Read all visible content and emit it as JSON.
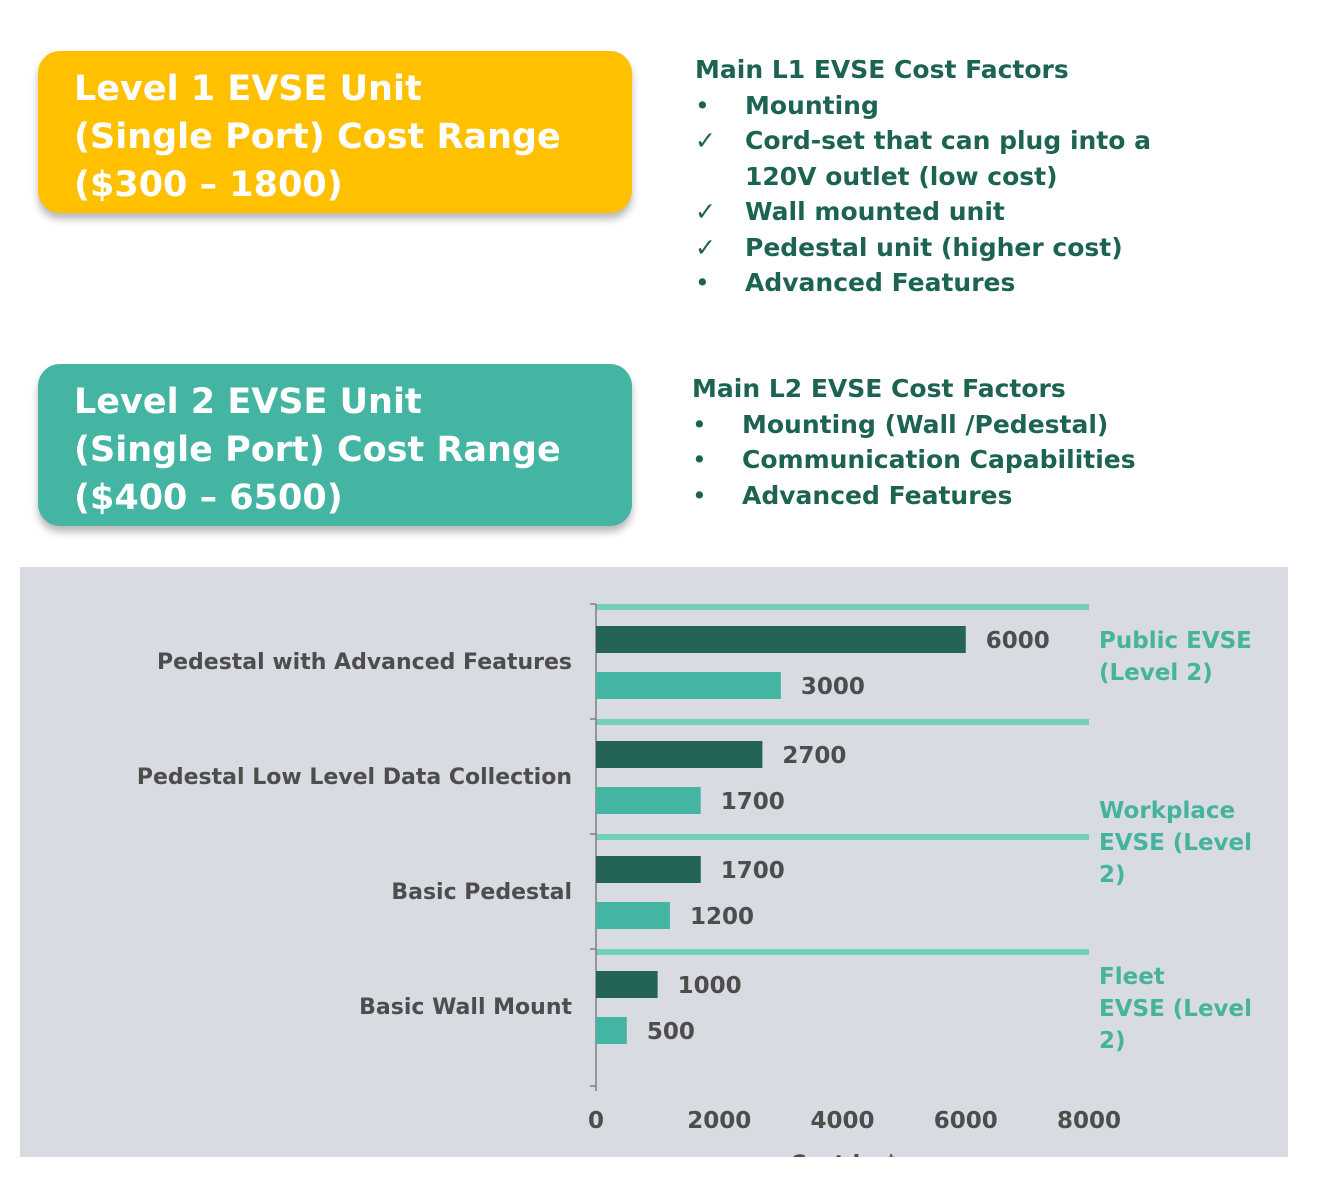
{
  "level1": {
    "lines": [
      "Level 1 EVSE Unit",
      "(Single Port) Cost Range",
      "($300 – 1800)"
    ],
    "color": "#ffc000"
  },
  "level2": {
    "lines": [
      "Level 2 EVSE Unit",
      "(Single Port) Cost Range",
      "($400 – 6500)"
    ],
    "color": "#45b5a3"
  },
  "factors_l1": {
    "heading": "Main L1 EVSE Cost Factors",
    "items": [
      {
        "mark": "•",
        "lines": [
          "Mounting"
        ]
      },
      {
        "mark": "✓",
        "lines": [
          "Cord-set that can plug into a",
          "120V outlet (low cost)"
        ]
      },
      {
        "mark": "✓",
        "lines": [
          "Wall mounted unit"
        ]
      },
      {
        "mark": "✓",
        "lines": [
          "Pedestal unit (higher cost)"
        ]
      },
      {
        "mark": "•",
        "lines": [
          "Advanced Features"
        ]
      }
    ]
  },
  "factors_l2": {
    "heading": "Main L2 EVSE Cost Factors",
    "items": [
      {
        "mark": "•",
        "lines": [
          "Mounting (Wall /Pedestal)"
        ]
      },
      {
        "mark": "•",
        "lines": [
          "Communication Capabilities"
        ]
      },
      {
        "mark": "•",
        "lines": [
          "Advanced Features"
        ]
      }
    ]
  },
  "chart_data": {
    "type": "bar",
    "orientation": "horizontal",
    "categories": [
      "Pedestal with Advanced Features",
      "Pedestal Low Level Data Collection",
      "Basic Pedestal",
      "Basic Wall Mount"
    ],
    "series": [
      {
        "values": [
          6000,
          2700,
          1700,
          1000
        ],
        "color": "#236457"
      },
      {
        "values": [
          3000,
          1700,
          1200,
          500
        ],
        "color": "#45b5a3"
      }
    ],
    "xlabel": "Cost in $",
    "xlim": [
      0,
      8000
    ],
    "xticks": [
      0,
      2000,
      4000,
      6000,
      8000
    ],
    "segments": [
      {
        "lines": [
          "Public EVSE",
          "(Level 2)"
        ]
      },
      {
        "lines": [
          "Workplace",
          "EVSE (Level",
          "2)"
        ]
      },
      {
        "lines": [
          "Fleet",
          "EVSE (Level",
          "2)"
        ]
      }
    ],
    "separator_color": "#72cfbd",
    "background": "#d8dbe2",
    "grid": false
  }
}
